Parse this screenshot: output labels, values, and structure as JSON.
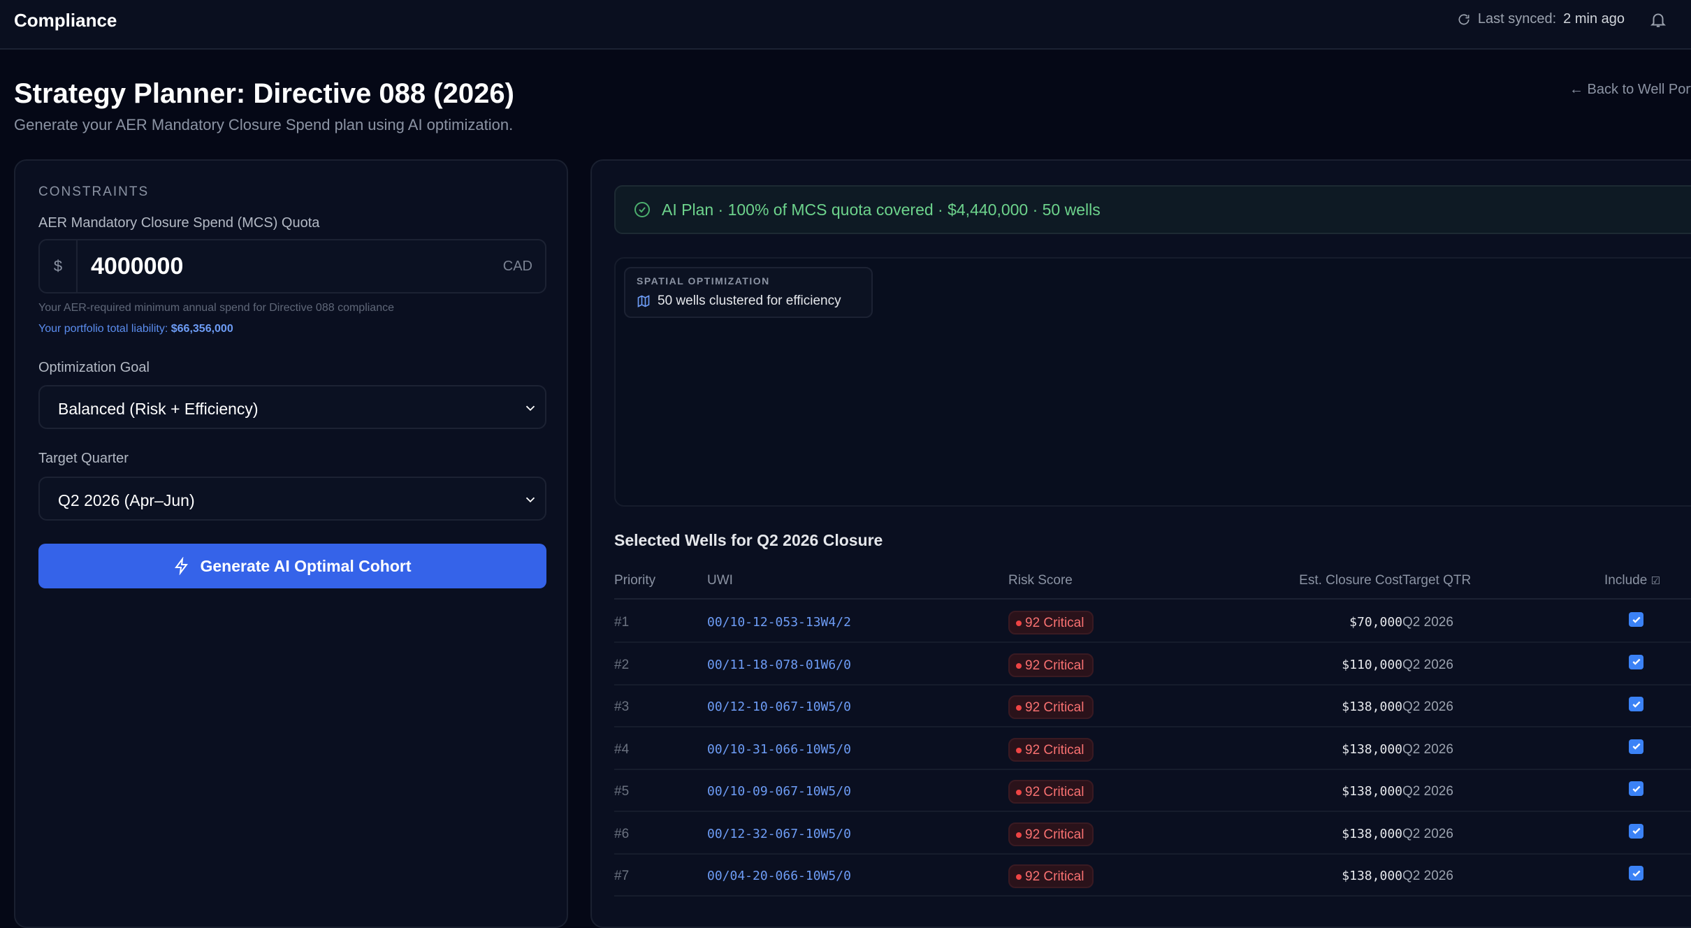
{
  "header": {
    "app_title": "Compliance",
    "sync_label": "Last synced:",
    "sync_value": "2 min ago"
  },
  "page": {
    "title": "Strategy Planner: Directive 088 (2026)",
    "subtitle": "Generate your AER Mandatory Closure Spend plan using AI optimization.",
    "back_link": "← Back to Well Portfolio"
  },
  "constraints": {
    "section": "CONSTRAINTS",
    "quota_label": "AER Mandatory Closure Spend (MCS) Quota",
    "currency_symbol": "$",
    "quota_value": "4000000",
    "currency": "CAD",
    "help": "Your AER-required minimum annual spend for Directive 088 compliance",
    "liability_label": "Your portfolio total liability:",
    "liability_value": "$66,356,000",
    "goal_label": "Optimization Goal",
    "goal_value": "Balanced (Risk + Efficiency)",
    "quarter_label": "Target Quarter",
    "quarter_value": "Q2 2026 (Apr–Jun)",
    "generate_button": "Generate AI Optimal Cohort"
  },
  "plan": {
    "banner": "AI Plan · 100% of MCS quota covered · $4,440,000 · 50 wells",
    "map_badge_title": "SPATIAL OPTIMIZATION",
    "map_badge_text": "50 wells clustered for efficiency",
    "table_title": "Selected Wells for Q2 2026 Closure",
    "columns": [
      "Priority",
      "UWI",
      "Risk Score",
      "Est. Closure Cost",
      "Target QTR",
      "Include"
    ],
    "rows": [
      {
        "priority": "#1",
        "uwi": "00/10-12-053-13W4/2",
        "risk": "92 Critical",
        "cost": "$70,000",
        "qtr": "Q2 2026",
        "include": true
      },
      {
        "priority": "#2",
        "uwi": "00/11-18-078-01W6/0",
        "risk": "92 Critical",
        "cost": "$110,000",
        "qtr": "Q2 2026",
        "include": true
      },
      {
        "priority": "#3",
        "uwi": "00/12-10-067-10W5/0",
        "risk": "92 Critical",
        "cost": "$138,000",
        "qtr": "Q2 2026",
        "include": true
      },
      {
        "priority": "#4",
        "uwi": "00/10-31-066-10W5/0",
        "risk": "92 Critical",
        "cost": "$138,000",
        "qtr": "Q2 2026",
        "include": true
      },
      {
        "priority": "#5",
        "uwi": "00/10-09-067-10W5/0",
        "risk": "92 Critical",
        "cost": "$138,000",
        "qtr": "Q2 2026",
        "include": true
      },
      {
        "priority": "#6",
        "uwi": "00/12-32-067-10W5/0",
        "risk": "92 Critical",
        "cost": "$138,000",
        "qtr": "Q2 2026",
        "include": true
      },
      {
        "priority": "#7",
        "uwi": "00/04-20-066-10W5/0",
        "risk": "92 Critical",
        "cost": "$138,000",
        "qtr": "Q2 2026",
        "include": true
      }
    ]
  },
  "colors": {
    "accent": "#3563e9",
    "success": "#6dd38c",
    "critical": "#f87171",
    "link": "#6d9cf5"
  }
}
